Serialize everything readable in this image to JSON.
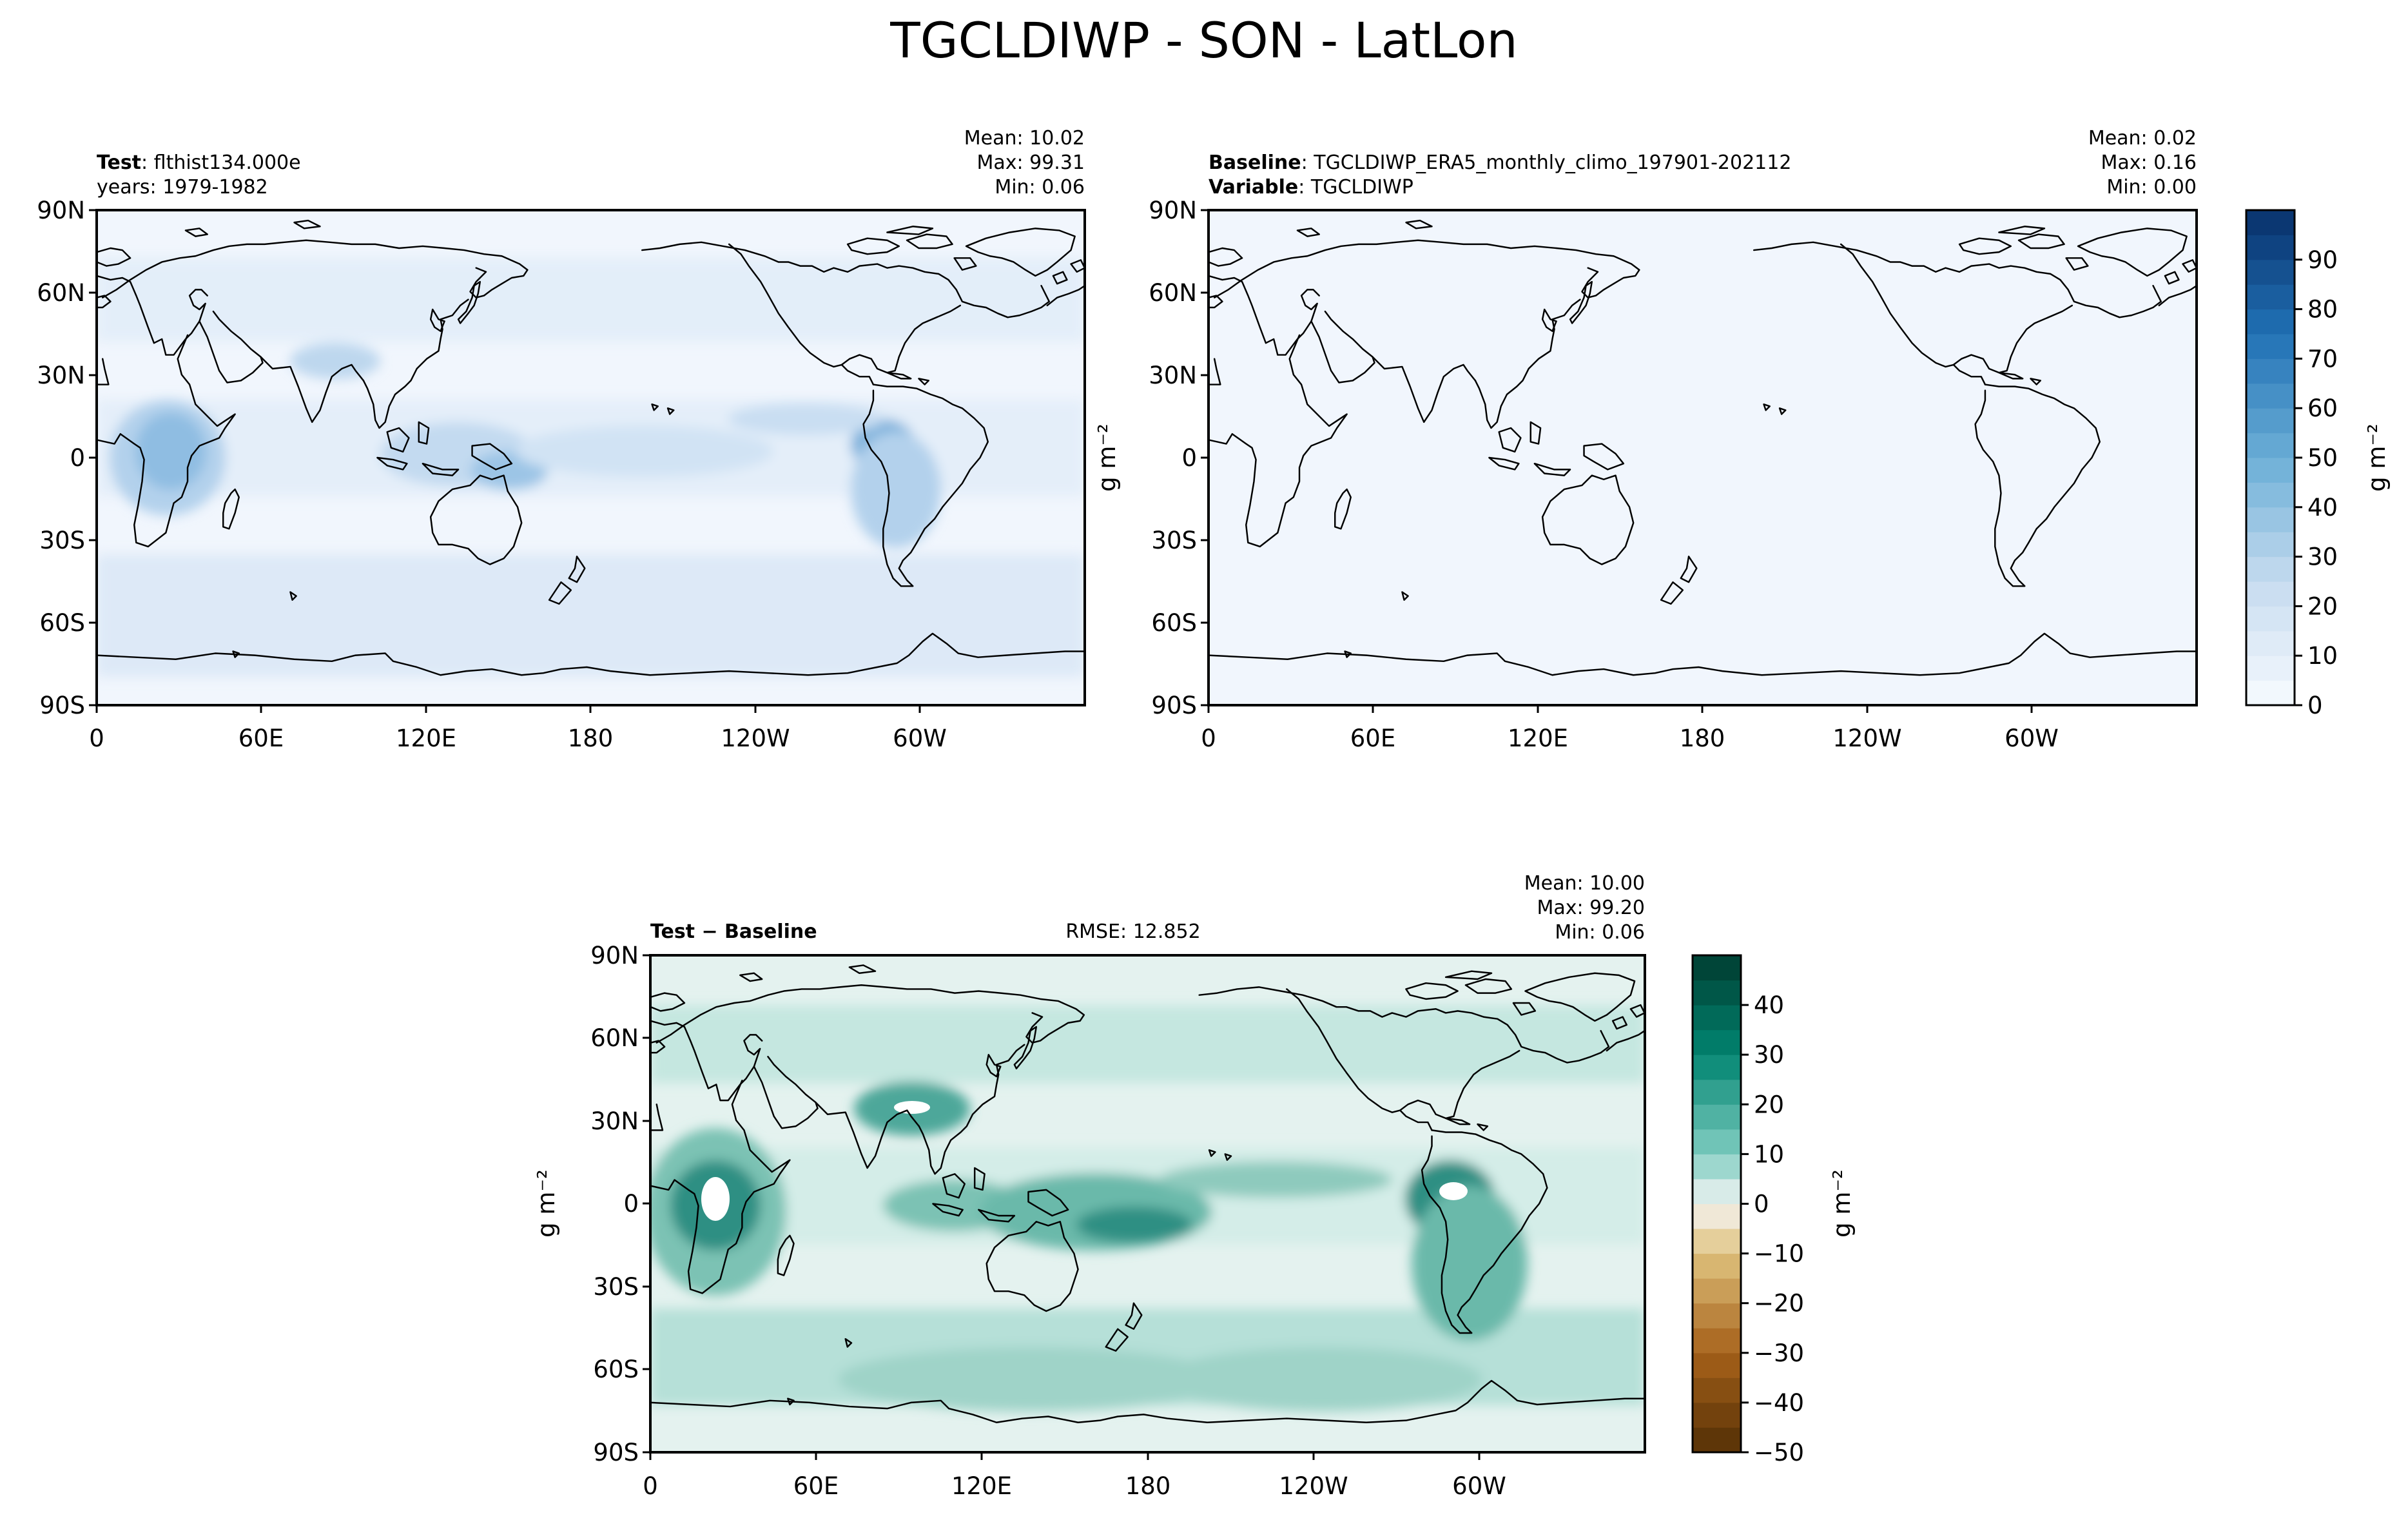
{
  "figure": {
    "title": "TGCLDIWP - SON - LatLon"
  },
  "panels": {
    "test": {
      "left_label_bold": "Test",
      "left_label_rest": ": flthist134.000e",
      "left_line2": "years: 1979-1982",
      "stats": {
        "mean": "Mean: 10.02",
        "max": "Max: 99.31",
        "min": "Min:  0.06"
      }
    },
    "baseline": {
      "left_label_bold": "Baseline",
      "left_label_rest": ": TGCLDIWP_ERA5_monthly_climo_197901-202112",
      "left_line2_bold": "Variable",
      "left_line2_rest": ": TGCLDIWP",
      "stats": {
        "mean": "Mean:  0.02",
        "max": "Max:  0.16",
        "min": "Min:  0.00"
      }
    },
    "diff": {
      "left_label": "Test − Baseline",
      "center_label": "RMSE: 12.852",
      "stats": {
        "mean": "Mean: 10.00",
        "max": "Max: 99.20",
        "min": "Min:  0.06"
      }
    }
  },
  "units_label": "g m⁻²",
  "colors": {
    "land_outline": "#000000",
    "blues_low": "#f2f7fd",
    "blues_high": "#08306b",
    "brbg_neg": "#543005",
    "brbg_pos": "#003c30"
  },
  "chart_data": [
    {
      "type": "heatmap",
      "name": "test",
      "projection": "PlateCarree, central_longitude 180",
      "x_ticks": [
        "0",
        "60E",
        "120E",
        "180",
        "120W",
        "60W"
      ],
      "y_ticks": [
        "90N",
        "60N",
        "30N",
        "0",
        "30S",
        "60S",
        "90S"
      ],
      "value_range": [
        0,
        99.31
      ],
      "mean": 10.02
    },
    {
      "type": "heatmap",
      "name": "baseline",
      "projection": "PlateCarree, central_longitude 180",
      "x_ticks": [
        "0",
        "60E",
        "120E",
        "180",
        "120W",
        "60W"
      ],
      "y_ticks": [
        "90N",
        "60N",
        "30N",
        "0",
        "30S",
        "60S",
        "90S"
      ],
      "value_range": [
        0,
        0.16
      ],
      "mean": 0.02
    },
    {
      "type": "heatmap",
      "name": "difference",
      "projection": "PlateCarree, central_longitude 180",
      "x_ticks": [
        "0",
        "60E",
        "120E",
        "180",
        "120W",
        "60W"
      ],
      "y_ticks": [
        "90N",
        "60N",
        "30N",
        "0",
        "30S",
        "60S",
        "90S"
      ],
      "value_range": [
        0.06,
        99.2
      ],
      "mean": 10.0,
      "rmse": 12.852
    }
  ],
  "colorbars": {
    "main": {
      "levels": [
        0,
        5,
        10,
        15,
        20,
        25,
        30,
        35,
        40,
        45,
        50,
        55,
        60,
        65,
        70,
        75,
        80,
        85,
        90,
        95
      ],
      "ticks": [
        "0",
        "10",
        "20",
        "30",
        "40",
        "50",
        "60",
        "70",
        "80",
        "90"
      ],
      "colormap": "Blues"
    },
    "diff": {
      "levels": [
        -50,
        -45,
        -40,
        -35,
        -30,
        -25,
        -20,
        -15,
        -10,
        -5,
        0,
        5,
        10,
        15,
        20,
        25,
        30,
        35,
        40,
        45
      ],
      "ticks": [
        "−50",
        "−40",
        "−30",
        "−20",
        "−10",
        "0",
        "10",
        "20",
        "30",
        "40"
      ],
      "colormap": "BrBG"
    }
  }
}
